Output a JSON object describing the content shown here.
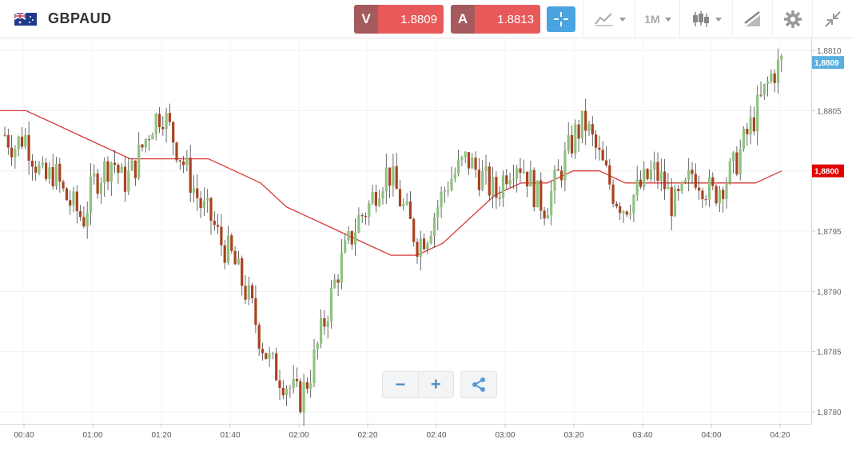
{
  "header": {
    "symbol": "GBPAUD",
    "sell": {
      "tag": "V",
      "price": "1.8809"
    },
    "buy": {
      "tag": "A",
      "price": "1.8813"
    },
    "timeframe": "1M",
    "icons": [
      "flag-icon",
      "crosshair-icon",
      "line-chart-icon",
      "candlestick-icon",
      "draw-icon",
      "gear-icon",
      "collapse-icon"
    ]
  },
  "colors": {
    "bull": "#8fc280",
    "bear": "#a8431f",
    "ma": "#d93b3b",
    "accent": "#4aa4e0",
    "price_tag": "#5ab0de",
    "ma_tag": "#e00000"
  },
  "chart_data": {
    "type": "candlestick",
    "y_ticks": [
      "1,8780",
      "1,8785",
      "1,8790",
      "1,8795",
      "1,8800",
      "1,8805",
      "1,8810"
    ],
    "x_ticks": [
      "00:40",
      "01:00",
      "01:20",
      "01:40",
      "02:00",
      "02:20",
      "02:40",
      "03:00",
      "03:20",
      "03:40",
      "04:00",
      "04:20"
    ],
    "ylim": [
      1.8779,
      1.8811
    ],
    "last_price_label": "1,8809",
    "ma_label": "1,8800",
    "candles_note": "one-minute bars, roughly 00:32 to 04:20",
    "close_path": [
      1.8803,
      1.8802,
      1.8803,
      1.8801,
      1.8799,
      1.88,
      1.8798,
      1.8797,
      1.8796,
      1.8799,
      1.88,
      1.8801,
      1.8799,
      1.88,
      1.8802,
      1.8804,
      1.8805,
      1.8803,
      1.8801,
      1.8799,
      1.8797,
      1.8796,
      1.8794,
      1.8793,
      1.8791,
      1.8789,
      1.8786,
      1.8784,
      1.8783,
      1.8782,
      1.8781,
      1.8783,
      1.8786,
      1.8789,
      1.8792,
      1.8794,
      1.8796,
      1.8797,
      1.8799,
      1.88,
      1.8798,
      1.8796,
      1.8794,
      1.8795,
      1.8797,
      1.8799,
      1.88,
      1.8801,
      1.88,
      1.8799,
      1.8798,
      1.88,
      1.8801,
      1.88,
      1.8798,
      1.8797,
      1.8799,
      1.8801,
      1.8803,
      1.8804,
      1.8802,
      1.88,
      1.8798,
      1.8797,
      1.8798,
      1.8799,
      1.88,
      1.8799,
      1.8797,
      1.8798,
      1.88,
      1.8799,
      1.8798,
      1.8799,
      1.88,
      1.8802,
      1.8804,
      1.8806,
      1.8808,
      1.8809
    ],
    "ma_path": [
      1.8805,
      1.8805,
      1.8804,
      1.8803,
      1.8802,
      1.8801,
      1.8801,
      1.8801,
      1.8801,
      1.88,
      1.8799,
      1.8797,
      1.8796,
      1.8795,
      1.8794,
      1.8793,
      1.8793,
      1.8794,
      1.8796,
      1.8798,
      1.8799,
      1.8799,
      1.88,
      1.88,
      1.8799,
      1.8799,
      1.8799,
      1.8799,
      1.8799,
      1.8799,
      1.88
    ]
  }
}
